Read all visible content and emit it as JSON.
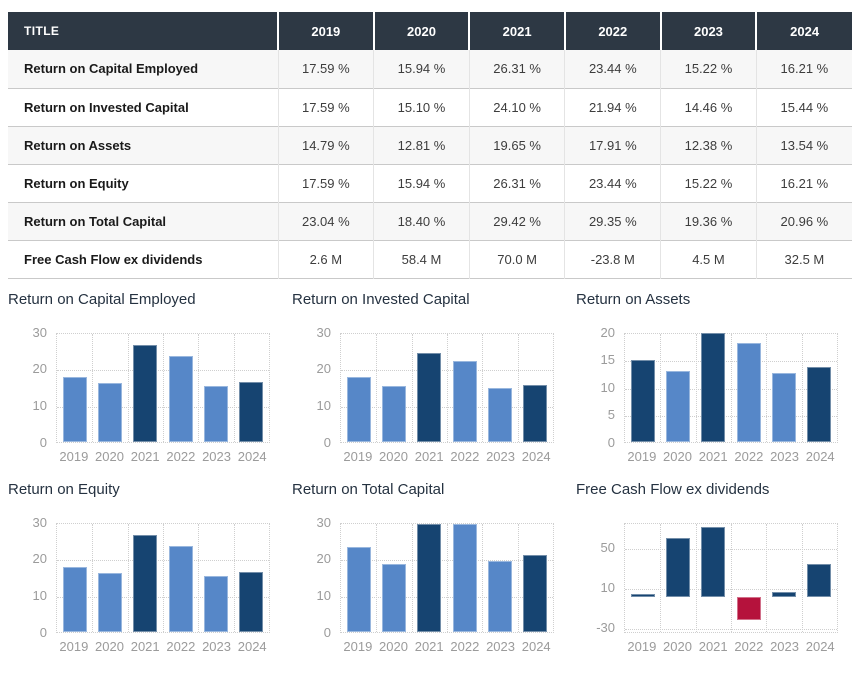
{
  "palette": {
    "table_header_bg": "#2d3844",
    "bar_light": "#5687c8",
    "bar_dark": "#164471",
    "bar_negative": "#b5123c",
    "grid_color": "#cfcfcf",
    "axis_label_color": "#9b9b9b",
    "chart_title_color": "#253241"
  },
  "table": {
    "header": [
      "TITLE",
      "2019",
      "2020",
      "2021",
      "2022",
      "2023",
      "2024"
    ],
    "rows": [
      {
        "label": "Return on Capital Employed",
        "values": [
          "17.59 %",
          "15.94 %",
          "26.31 %",
          "23.44 %",
          "15.22 %",
          "16.21 %"
        ]
      },
      {
        "label": "Return on Invested Capital",
        "values": [
          "17.59 %",
          "15.10 %",
          "24.10 %",
          "21.94 %",
          "14.46 %",
          "15.44 %"
        ]
      },
      {
        "label": "Return on Assets",
        "values": [
          "14.79 %",
          "12.81 %",
          "19.65 %",
          "17.91 %",
          "12.38 %",
          "13.54 %"
        ]
      },
      {
        "label": "Return on Equity",
        "values": [
          "17.59 %",
          "15.94 %",
          "26.31 %",
          "23.44 %",
          "15.22 %",
          "16.21 %"
        ]
      },
      {
        "label": "Return on Total Capital",
        "values": [
          "23.04 %",
          "18.40 %",
          "29.42 %",
          "29.35 %",
          "19.36 %",
          "20.96 %"
        ]
      },
      {
        "label": "Free Cash Flow ex dividends",
        "values": [
          "2.6 M",
          "58.4 M",
          "70.0 M",
          "-23.8 M",
          "4.5 M",
          "32.5 M"
        ]
      }
    ]
  },
  "chart_data": [
    {
      "type": "bar",
      "title": "Return on Capital Employed",
      "categories": [
        "2019",
        "2020",
        "2021",
        "2022",
        "2023",
        "2024"
      ],
      "values": [
        17.59,
        15.94,
        26.31,
        23.44,
        15.22,
        16.21
      ],
      "ylim": [
        0,
        30
      ],
      "yticks": [
        30,
        20,
        10,
        0
      ],
      "bar_colors": [
        "light",
        "light",
        "dark",
        "light",
        "light",
        "dark"
      ],
      "xlabel": "",
      "ylabel": "",
      "grid": true,
      "legend": false
    },
    {
      "type": "bar",
      "title": "Return on Invested Capital",
      "categories": [
        "2019",
        "2020",
        "2021",
        "2022",
        "2023",
        "2024"
      ],
      "values": [
        17.59,
        15.1,
        24.1,
        21.94,
        14.46,
        15.44
      ],
      "ylim": [
        0,
        30
      ],
      "yticks": [
        30,
        20,
        10,
        0
      ],
      "bar_colors": [
        "light",
        "light",
        "dark",
        "light",
        "light",
        "dark"
      ],
      "xlabel": "",
      "ylabel": "",
      "grid": true,
      "legend": false
    },
    {
      "type": "bar",
      "title": "Return on Assets",
      "categories": [
        "2019",
        "2020",
        "2021",
        "2022",
        "2023",
        "2024"
      ],
      "values": [
        14.79,
        12.81,
        19.65,
        17.91,
        12.38,
        13.54
      ],
      "ylim": [
        0,
        20
      ],
      "yticks": [
        20,
        15,
        10,
        5,
        0
      ],
      "bar_colors": [
        "dark",
        "light",
        "dark",
        "light",
        "light",
        "dark"
      ],
      "xlabel": "",
      "ylabel": "",
      "grid": true,
      "legend": false
    },
    {
      "type": "bar",
      "title": "Return on Equity",
      "categories": [
        "2019",
        "2020",
        "2021",
        "2022",
        "2023",
        "2024"
      ],
      "values": [
        17.59,
        15.94,
        26.31,
        23.44,
        15.22,
        16.21
      ],
      "ylim": [
        0,
        30
      ],
      "yticks": [
        30,
        20,
        10,
        0
      ],
      "bar_colors": [
        "light",
        "light",
        "dark",
        "light",
        "light",
        "dark"
      ],
      "xlabel": "",
      "ylabel": "",
      "grid": true,
      "legend": false
    },
    {
      "type": "bar",
      "title": "Return on Total Capital",
      "categories": [
        "2019",
        "2020",
        "2021",
        "2022",
        "2023",
        "2024"
      ],
      "values": [
        23.04,
        18.4,
        29.42,
        29.35,
        19.36,
        20.96
      ],
      "ylim": [
        0,
        30
      ],
      "yticks": [
        30,
        20,
        10,
        0
      ],
      "bar_colors": [
        "light",
        "light",
        "dark",
        "light",
        "light",
        "dark"
      ],
      "xlabel": "",
      "ylabel": "",
      "grid": true,
      "legend": false
    },
    {
      "type": "bar",
      "title": "Free Cash Flow ex dividends",
      "categories": [
        "2019",
        "2020",
        "2021",
        "2022",
        "2023",
        "2024"
      ],
      "values": [
        2.6,
        58.4,
        70.0,
        -23.8,
        4.5,
        32.5
      ],
      "ylim": [
        -35,
        75
      ],
      "yticks": [
        50,
        10,
        -30
      ],
      "bar_colors": [
        "dark",
        "dark",
        "dark",
        "red",
        "dark",
        "dark"
      ],
      "xlabel": "",
      "ylabel": "",
      "grid": true,
      "legend": false
    }
  ]
}
